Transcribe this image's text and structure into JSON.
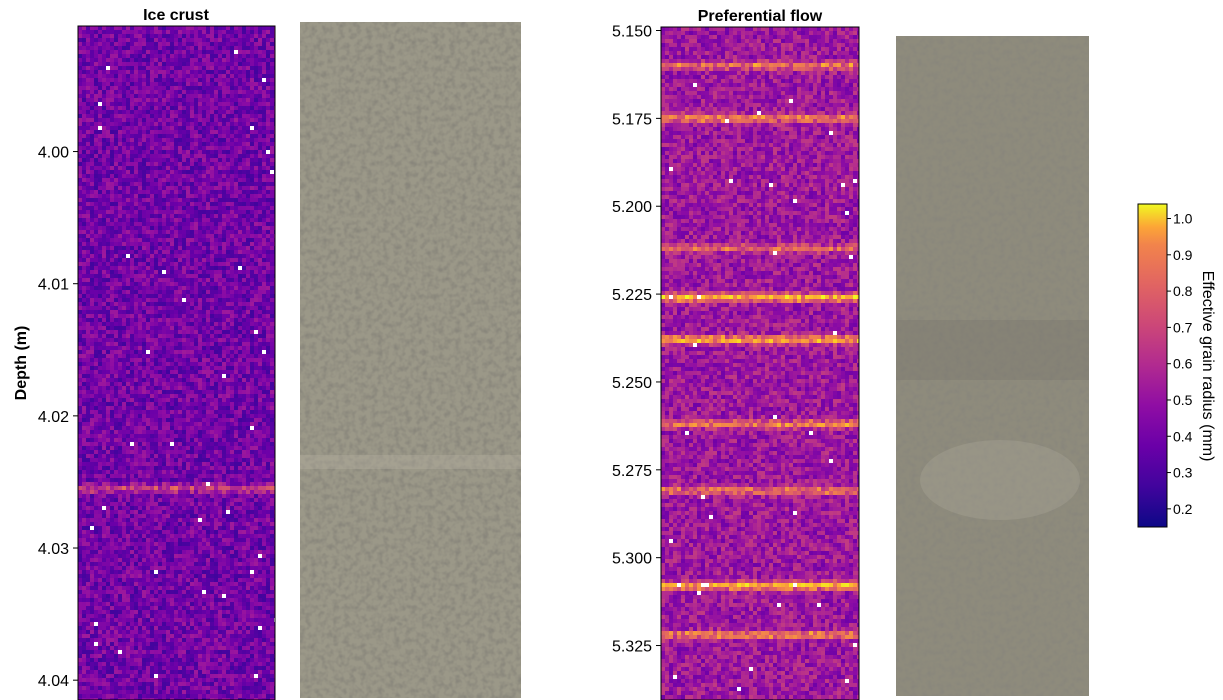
{
  "chart_data": [
    {
      "type": "heatmap",
      "title": "Ice crust",
      "ylabel": "Depth (m)",
      "ylim": [
        3.9905,
        4.0415
      ],
      "y_inverted": true,
      "yticks": [
        4.0,
        4.01,
        4.02,
        4.03,
        4.04
      ],
      "ytick_labels": [
        "4.00",
        "4.01",
        "4.02",
        "4.03",
        "4.04"
      ],
      "colormap": "plasma",
      "high_radius_bands": [
        {
          "depth": 4.0255,
          "effective_radius_mm": 0.62
        }
      ],
      "background_effective_radius_mm": 0.35
    },
    {
      "type": "image",
      "description": "",
      "companion_of": "Ice crust"
    },
    {
      "type": "heatmap",
      "title": "Preferential flow",
      "ylim": [
        5.149,
        5.3405
      ],
      "y_inverted": true,
      "yticks": [
        5.15,
        5.175,
        5.2,
        5.225,
        5.25,
        5.275,
        5.3,
        5.325
      ],
      "ytick_labels": [
        "5.150",
        "5.175",
        "5.200",
        "5.225",
        "5.250",
        "5.275",
        "5.300",
        "5.325"
      ],
      "colormap": "plasma",
      "high_radius_bands": [
        {
          "depth": 5.16,
          "effective_radius_mm": 0.75
        },
        {
          "depth": 5.175,
          "effective_radius_mm": 0.8
        },
        {
          "depth": 5.212,
          "effective_radius_mm": 0.7
        },
        {
          "depth": 5.226,
          "effective_radius_mm": 0.95
        },
        {
          "depth": 5.238,
          "effective_radius_mm": 0.9
        },
        {
          "depth": 5.262,
          "effective_radius_mm": 0.8
        },
        {
          "depth": 5.281,
          "effective_radius_mm": 0.75
        },
        {
          "depth": 5.308,
          "effective_radius_mm": 0.95
        },
        {
          "depth": 5.322,
          "effective_radius_mm": 0.8
        }
      ],
      "background_effective_radius_mm": 0.45
    },
    {
      "type": "image",
      "description": "",
      "companion_of": "Preferential flow"
    }
  ],
  "colorbar": {
    "label": "Effective grain radius (mm)",
    "range": [
      0.15,
      1.04
    ],
    "ticks": [
      0.2,
      0.3,
      0.4,
      0.5,
      0.6,
      0.7,
      0.8,
      0.9,
      1.0
    ],
    "tick_labels": [
      "0.2",
      "0.3",
      "0.4",
      "0.5",
      "0.6",
      "0.7",
      "0.8",
      "0.9",
      "1.0"
    ],
    "colormap": "plasma"
  },
  "colors": {
    "plasma_low": "#0d0887",
    "plasma_mid": "#cc4778",
    "plasma_high": "#f0f921",
    "snow_photo_base": "#9b9888"
  }
}
